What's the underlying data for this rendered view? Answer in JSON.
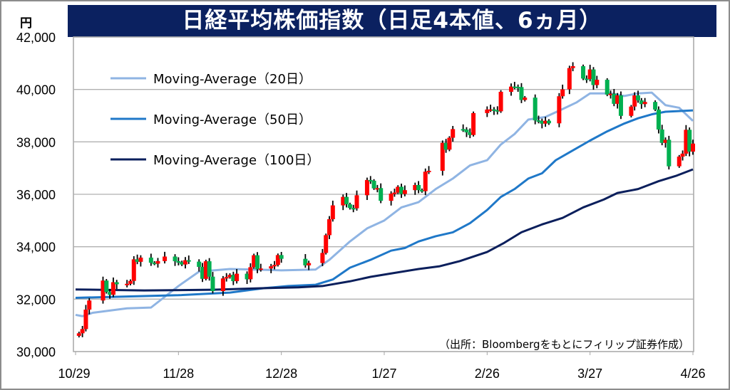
{
  "chart_data": {
    "type": "candlestick",
    "title": "日経平均株価指数（日足4本値、6ヵ月）",
    "ylabel": "円",
    "ylim": [
      30000,
      42000
    ],
    "y_ticks": [
      "30,000",
      "32,000",
      "34,000",
      "36,000",
      "38,000",
      "40,000",
      "42,000"
    ],
    "y_tick_values": [
      30000,
      32000,
      34000,
      36000,
      38000,
      40000,
      42000
    ],
    "x_ticks": [
      "10/29",
      "11/28",
      "12/28",
      "1/27",
      "2/26",
      "3/27",
      "4/26"
    ],
    "x_tick_days": [
      0,
      30,
      60,
      90,
      120,
      150,
      180
    ],
    "x_unit": "days since 10/29",
    "grid": "horizontal",
    "legend_position": "top-left",
    "source": "（出所：Bloombergをもとにフィリップ証券作成）",
    "up_color": "#ff0000",
    "down_color": "#00b050",
    "first_open": 30600,
    "candles_day_close": [
      [
        1,
        30697
      ],
      [
        2,
        30858
      ],
      [
        3,
        31601
      ],
      [
        4,
        31949
      ],
      [
        8,
        32708
      ],
      [
        9,
        32271
      ],
      [
        10,
        32166
      ],
      [
        11,
        32646
      ],
      [
        12,
        32568
      ],
      [
        15,
        32585
      ],
      [
        16,
        32695
      ],
      [
        17,
        33519
      ],
      [
        18,
        33424
      ],
      [
        19,
        33585
      ],
      [
        22,
        33388
      ],
      [
        23,
        33354
      ],
      [
        24,
        33452
      ],
      [
        26,
        33625
      ],
      [
        29,
        33447
      ],
      [
        30,
        33408
      ],
      [
        31,
        33321
      ],
      [
        32,
        33486
      ],
      [
        33,
        33431
      ],
      [
        36,
        33231
      ],
      [
        37,
        32775
      ],
      [
        38,
        33445
      ],
      [
        39,
        32858
      ],
      [
        40,
        32307
      ],
      [
        43,
        32791
      ],
      [
        44,
        32843
      ],
      [
        45,
        32926
      ],
      [
        46,
        32686
      ],
      [
        47,
        32970
      ],
      [
        50,
        32758
      ],
      [
        51,
        33219
      ],
      [
        52,
        33675
      ],
      [
        53,
        33140
      ],
      [
        54,
        33169
      ],
      [
        57,
        33254
      ],
      [
        58,
        33305
      ],
      [
        59,
        33681
      ],
      [
        60,
        33539
      ],
      [
        67,
        33288
      ],
      [
        68,
        33377
      ],
      [
        72,
        33763
      ],
      [
        73,
        34441
      ],
      [
        74,
        35049
      ],
      [
        75,
        35577
      ],
      [
        78,
        35901
      ],
      [
        79,
        35619
      ],
      [
        80,
        35477
      ],
      [
        81,
        35466
      ],
      [
        82,
        35963
      ],
      [
        85,
        36546
      ],
      [
        86,
        36517
      ],
      [
        87,
        36226
      ],
      [
        88,
        36236
      ],
      [
        89,
        35751
      ],
      [
        92,
        36026
      ],
      [
        93,
        36065
      ],
      [
        94,
        36286
      ],
      [
        95,
        36011
      ],
      [
        96,
        36158
      ],
      [
        99,
        36354
      ],
      [
        100,
        36160
      ],
      [
        101,
        36119
      ],
      [
        102,
        36863
      ],
      [
        103,
        36897
      ],
      [
        107,
        37963
      ],
      [
        108,
        37703
      ],
      [
        109,
        38157
      ],
      [
        110,
        38487
      ],
      [
        113,
        38470
      ],
      [
        114,
        38363
      ],
      [
        115,
        38262
      ],
      [
        116,
        39098
      ],
      [
        120,
        39233
      ],
      [
        121,
        39239
      ],
      [
        122,
        39208
      ],
      [
        123,
        39166
      ],
      [
        124,
        39910
      ],
      [
        127,
        40109
      ],
      [
        128,
        40097
      ],
      [
        129,
        40090
      ],
      [
        130,
        39598
      ],
      [
        131,
        39688
      ],
      [
        134,
        38820
      ],
      [
        135,
        38797
      ],
      [
        136,
        38695
      ],
      [
        137,
        38807
      ],
      [
        138,
        38707
      ],
      [
        141,
        39740
      ],
      [
        142,
        40003
      ],
      [
        144,
        40815
      ],
      [
        145,
        40888
      ],
      [
        148,
        40414
      ],
      [
        149,
        40398
      ],
      [
        150,
        40762
      ],
      [
        151,
        40168
      ],
      [
        152,
        40369
      ],
      [
        155,
        39803
      ],
      [
        156,
        39838
      ],
      [
        157,
        39451
      ],
      [
        158,
        39773
      ],
      [
        159,
        38992
      ],
      [
        162,
        39347
      ],
      [
        163,
        39773
      ],
      [
        164,
        39581
      ],
      [
        165,
        39442
      ],
      [
        166,
        39523
      ],
      [
        169,
        39232
      ],
      [
        170,
        38471
      ],
      [
        171,
        37961
      ],
      [
        172,
        38079
      ],
      [
        173,
        37068
      ],
      [
        176,
        37438
      ],
      [
        177,
        37552
      ],
      [
        178,
        38460
      ],
      [
        179,
        37628
      ],
      [
        180,
        37934
      ]
    ],
    "series": [
      {
        "name": "Moving-Average（20日）",
        "color": "#8fb4e3",
        "points": [
          [
            0,
            31400
          ],
          [
            2,
            31350
          ],
          [
            5,
            31480
          ],
          [
            15,
            31650
          ],
          [
            22,
            31680
          ],
          [
            30,
            32500
          ],
          [
            36,
            33050
          ],
          [
            45,
            33150
          ],
          [
            55,
            33120
          ],
          [
            60,
            33100
          ],
          [
            70,
            33130
          ],
          [
            74,
            33500
          ],
          [
            80,
            34200
          ],
          [
            85,
            34700
          ],
          [
            90,
            35000
          ],
          [
            95,
            35500
          ],
          [
            100,
            35700
          ],
          [
            105,
            36200
          ],
          [
            110,
            36600
          ],
          [
            115,
            37100
          ],
          [
            120,
            37300
          ],
          [
            124,
            37900
          ],
          [
            128,
            38300
          ],
          [
            132,
            38850
          ],
          [
            137,
            38950
          ],
          [
            142,
            39250
          ],
          [
            146,
            39500
          ],
          [
            150,
            39850
          ],
          [
            156,
            39850
          ],
          [
            160,
            39750
          ],
          [
            164,
            39850
          ],
          [
            168,
            39880
          ],
          [
            172,
            39400
          ],
          [
            176,
            39300
          ],
          [
            180,
            38800
          ]
        ]
      },
      {
        "name": "Moving-Average（50日）",
        "color": "#1f78c8",
        "points": [
          [
            0,
            32050
          ],
          [
            15,
            32100
          ],
          [
            30,
            32150
          ],
          [
            45,
            32250
          ],
          [
            55,
            32420
          ],
          [
            62,
            32500
          ],
          [
            70,
            32550
          ],
          [
            75,
            32750
          ],
          [
            80,
            33200
          ],
          [
            86,
            33500
          ],
          [
            92,
            33850
          ],
          [
            96,
            33950
          ],
          [
            100,
            34200
          ],
          [
            105,
            34400
          ],
          [
            110,
            34550
          ],
          [
            115,
            34900
          ],
          [
            120,
            35400
          ],
          [
            124,
            35900
          ],
          [
            128,
            36200
          ],
          [
            132,
            36600
          ],
          [
            136,
            36800
          ],
          [
            140,
            37300
          ],
          [
            144,
            37600
          ],
          [
            150,
            38050
          ],
          [
            155,
            38400
          ],
          [
            160,
            38700
          ],
          [
            164,
            38900
          ],
          [
            168,
            39050
          ],
          [
            172,
            39150
          ],
          [
            180,
            39200
          ]
        ]
      },
      {
        "name": "Moving-Average（100日）",
        "color": "#0b1f5c",
        "points": [
          [
            0,
            32370
          ],
          [
            20,
            32330
          ],
          [
            40,
            32360
          ],
          [
            55,
            32420
          ],
          [
            65,
            32450
          ],
          [
            72,
            32500
          ],
          [
            80,
            32680
          ],
          [
            86,
            32850
          ],
          [
            92,
            32980
          ],
          [
            100,
            33150
          ],
          [
            106,
            33250
          ],
          [
            112,
            33450
          ],
          [
            120,
            33800
          ],
          [
            125,
            34150
          ],
          [
            130,
            34550
          ],
          [
            136,
            34850
          ],
          [
            142,
            35100
          ],
          [
            148,
            35500
          ],
          [
            154,
            35800
          ],
          [
            158,
            36050
          ],
          [
            164,
            36200
          ],
          [
            170,
            36500
          ],
          [
            175,
            36700
          ],
          [
            180,
            36950
          ]
        ]
      }
    ]
  }
}
